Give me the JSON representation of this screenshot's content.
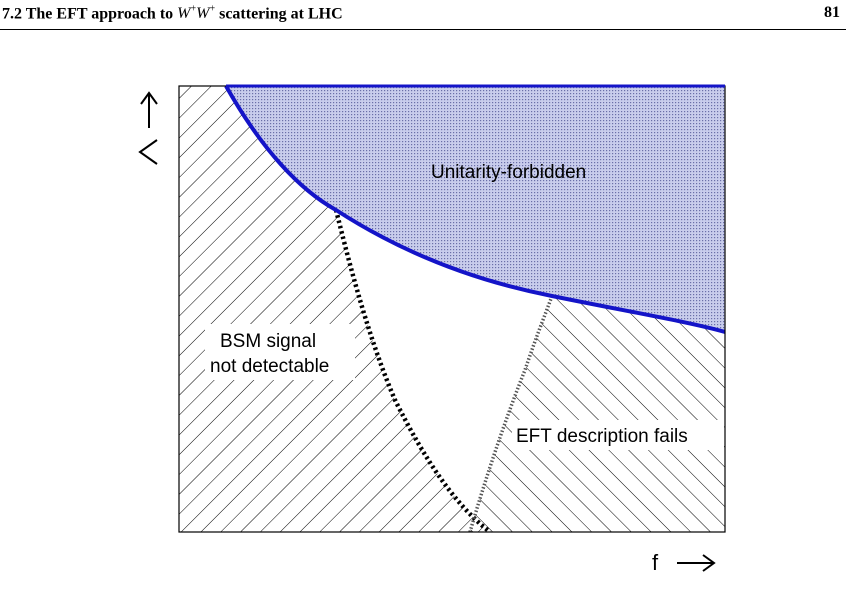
{
  "header": {
    "section_number": "7.2",
    "section_title_before": "The EFT approach to",
    "math_w1": "W",
    "math_sup1": "+",
    "math_w2": "W",
    "math_sup2": "+",
    "section_title_after": "scattering at LHC",
    "page_number": "81"
  },
  "figure": {
    "region_labels": {
      "unitarity": "Unitarity-forbidden",
      "bsm_line1": "BSM signal",
      "bsm_line2": "not detectable",
      "eft": "EFT description fails"
    },
    "axis_labels": {
      "x": "f",
      "y": "Λ"
    },
    "colors": {
      "unitarity_curve": "#1414c8",
      "unitarity_fill": "#9ea5d8",
      "hatch": "#000000"
    }
  }
}
